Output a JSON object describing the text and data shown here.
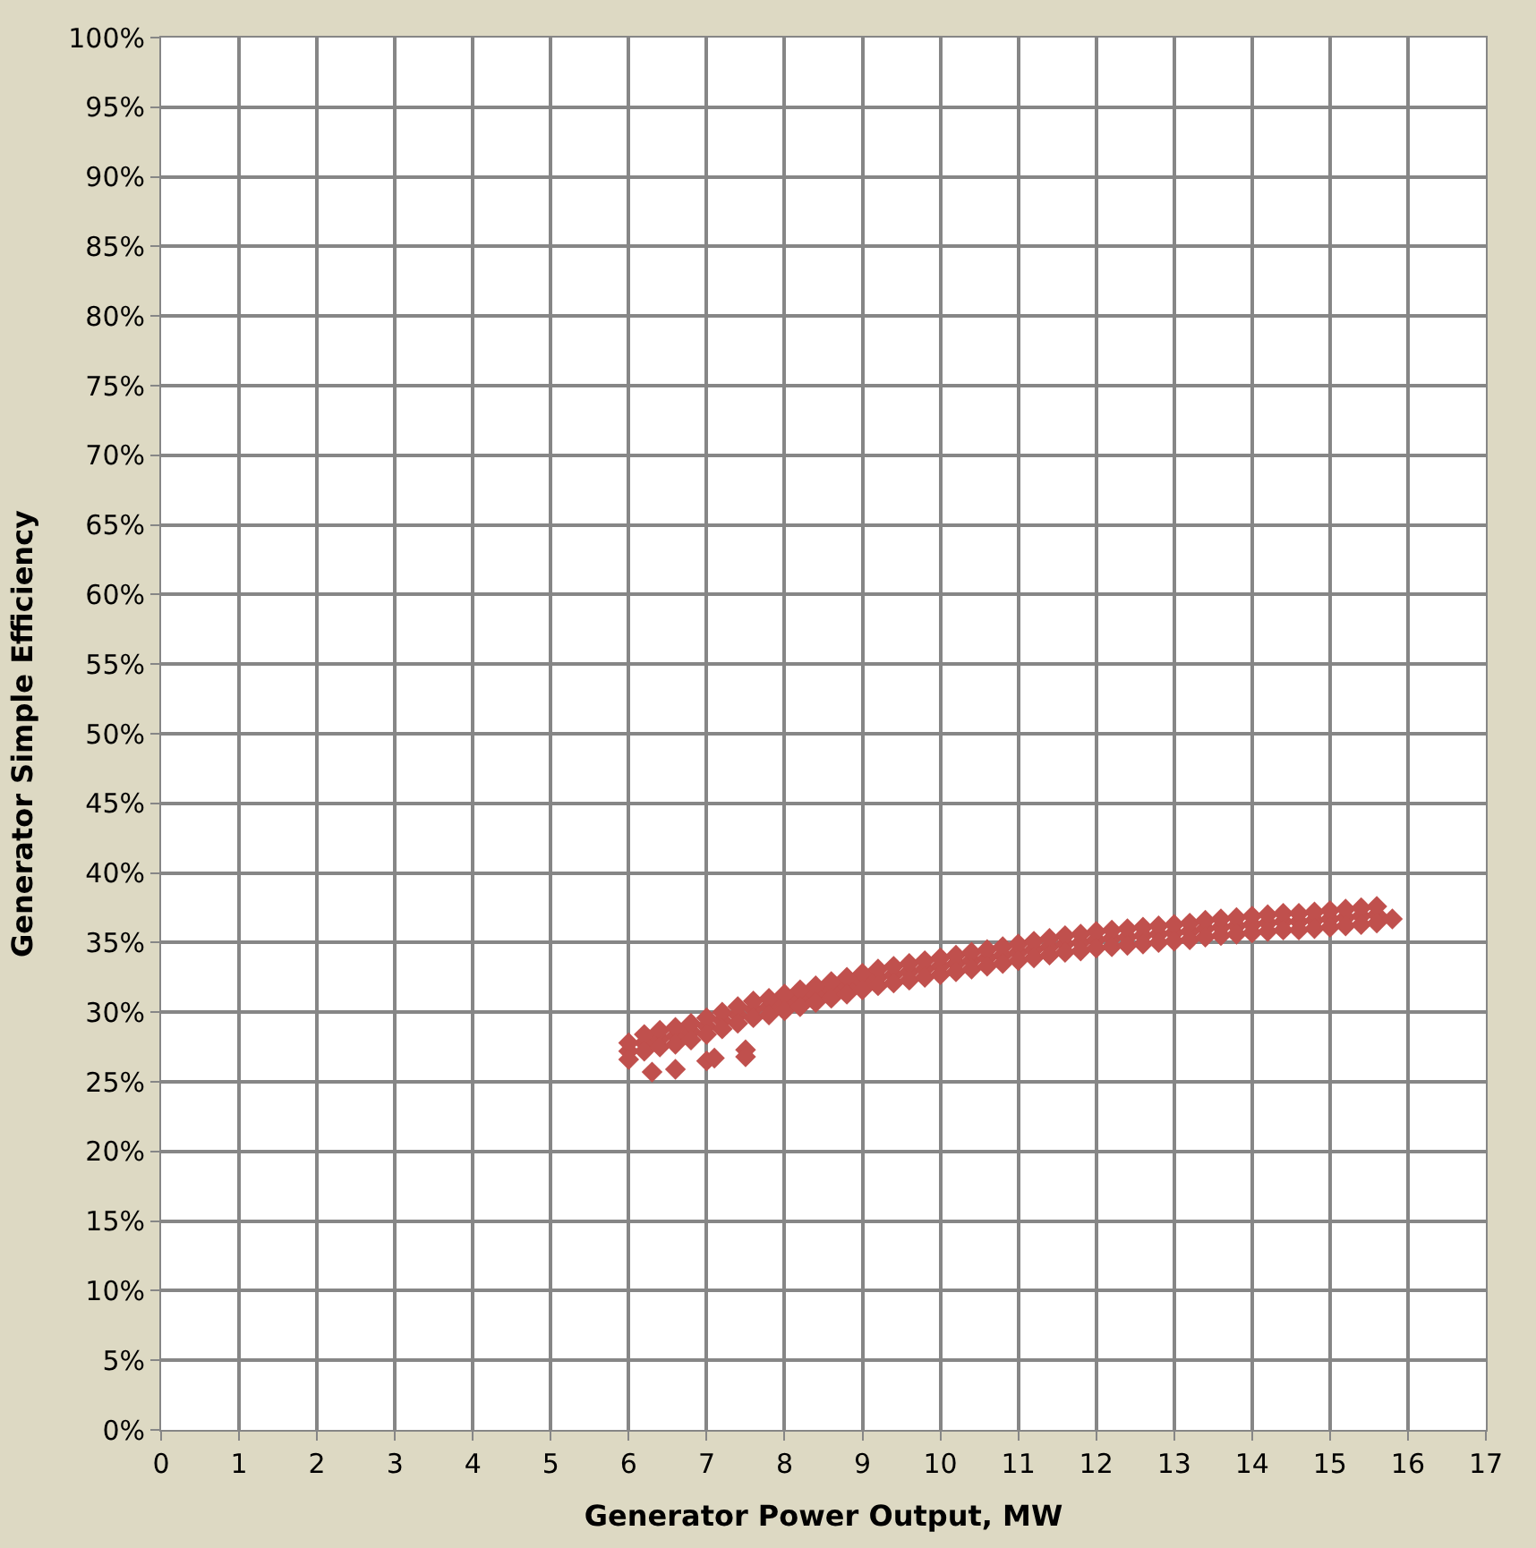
{
  "chart_data": {
    "type": "scatter",
    "xlabel": "Generator Power Output, MW",
    "ylabel": "Generator Simple Efficiency",
    "xlim": [
      0,
      17
    ],
    "xticks": [
      0,
      1,
      2,
      3,
      4,
      5,
      6,
      7,
      8,
      9,
      10,
      11,
      12,
      13,
      14,
      15,
      16,
      17
    ],
    "ylim": [
      0,
      100
    ],
    "yticks": [
      {
        "value": 0,
        "label": "0%"
      },
      {
        "value": 5,
        "label": "5%"
      },
      {
        "value": 10,
        "label": "10%"
      },
      {
        "value": 15,
        "label": "15%"
      },
      {
        "value": 20,
        "label": "20%"
      },
      {
        "value": 25,
        "label": "25%"
      },
      {
        "value": 30,
        "label": "30%"
      },
      {
        "value": 35,
        "label": "35%"
      },
      {
        "value": 40,
        "label": "40%"
      },
      {
        "value": 45,
        "label": "45%"
      },
      {
        "value": 50,
        "label": "50%"
      },
      {
        "value": 55,
        "label": "55%"
      },
      {
        "value": 60,
        "label": "60%"
      },
      {
        "value": 65,
        "label": "65%"
      },
      {
        "value": 70,
        "label": "70%"
      },
      {
        "value": 75,
        "label": "75%"
      },
      {
        "value": 80,
        "label": "80%"
      },
      {
        "value": 85,
        "label": "85%"
      },
      {
        "value": 90,
        "label": "90%"
      },
      {
        "value": 95,
        "label": "95%"
      },
      {
        "value": 100,
        "label": "100%"
      }
    ],
    "grid": true,
    "marker": "diamond",
    "series": [
      {
        "color": "#c0504d",
        "x": [
          6.0,
          6.2,
          6.4,
          6.6,
          6.8,
          7.0,
          7.2,
          7.4,
          7.6,
          7.8,
          8.0,
          8.2,
          8.4,
          8.6,
          8.8,
          9.0,
          9.2,
          9.4,
          9.6,
          9.8,
          10.0,
          10.2,
          10.4,
          10.6,
          10.8,
          11.0,
          11.2,
          11.4,
          11.6,
          11.8,
          12.0,
          12.2,
          12.4,
          12.6,
          12.8,
          13.0,
          13.2,
          13.4,
          13.6,
          13.8,
          14.0,
          14.2,
          14.4,
          14.6,
          14.8,
          15.0,
          15.2,
          15.4,
          15.6,
          6.0,
          6.2,
          6.4,
          6.6,
          6.8,
          7.0,
          7.2,
          7.4,
          7.6,
          7.8,
          8.0,
          8.2,
          8.4,
          8.6,
          8.8,
          9.0,
          9.2,
          9.4,
          9.6,
          9.8,
          10.0,
          10.2,
          10.4,
          10.6,
          10.8,
          11.0,
          11.2,
          11.4,
          11.6,
          11.8,
          12.0,
          12.2,
          12.4,
          12.6,
          12.8,
          13.0,
          13.2,
          13.4,
          13.6,
          13.8,
          14.0,
          14.2,
          14.4,
          14.6,
          14.8,
          15.0,
          15.2,
          15.4,
          15.6,
          6.0,
          6.2,
          6.4,
          6.6,
          6.8,
          7.0,
          7.2,
          7.4,
          7.6,
          7.8,
          8.0,
          8.2,
          8.4,
          8.6,
          8.8,
          9.0,
          9.2,
          9.4,
          9.6,
          9.8,
          10.0,
          10.2,
          10.4,
          10.6,
          10.8,
          11.0,
          11.2,
          11.4,
          11.6,
          11.8,
          12.0,
          12.2,
          12.4,
          12.6,
          12.8,
          13.0,
          13.2,
          13.4,
          13.6,
          13.8,
          14.0,
          14.2,
          14.4,
          14.6,
          14.8,
          15.0,
          15.2,
          15.4,
          15.6,
          6.3,
          6.6,
          7.0,
          7.1,
          7.5,
          7.5,
          15.8
        ],
        "values": [
          27.2,
          27.8,
          28.1,
          28.3,
          28.6,
          29.0,
          29.4,
          29.8,
          30.2,
          30.4,
          30.7,
          31.0,
          31.3,
          31.6,
          31.9,
          32.2,
          32.5,
          32.7,
          32.9,
          33.1,
          33.3,
          33.5,
          33.7,
          33.9,
          34.1,
          34.3,
          34.5,
          34.7,
          34.9,
          35.0,
          35.2,
          35.3,
          35.4,
          35.5,
          35.6,
          35.7,
          35.8,
          36.0,
          36.1,
          36.2,
          36.3,
          36.4,
          36.5,
          36.5,
          36.6,
          36.7,
          36.8,
          36.9,
          37.0,
          27.8,
          28.4,
          28.7,
          28.9,
          29.2,
          29.6,
          30.0,
          30.4,
          30.8,
          31.0,
          31.3,
          31.6,
          31.9,
          32.2,
          32.5,
          32.8,
          33.1,
          33.3,
          33.5,
          33.7,
          33.9,
          34.1,
          34.3,
          34.5,
          34.7,
          34.9,
          35.1,
          35.3,
          35.5,
          35.6,
          35.8,
          35.9,
          36.0,
          36.1,
          36.2,
          36.3,
          36.4,
          36.6,
          36.7,
          36.8,
          36.9,
          37.0,
          37.1,
          37.1,
          37.2,
          37.3,
          37.4,
          37.5,
          37.6,
          26.6,
          27.2,
          27.5,
          27.7,
          28.0,
          28.4,
          28.8,
          29.2,
          29.6,
          29.8,
          30.1,
          30.4,
          30.7,
          31.0,
          31.3,
          31.6,
          31.9,
          32.1,
          32.3,
          32.5,
          32.7,
          32.9,
          33.1,
          33.3,
          33.5,
          33.7,
          33.9,
          34.1,
          34.3,
          34.4,
          34.6,
          34.7,
          34.8,
          34.9,
          35.0,
          35.1,
          35.2,
          35.4,
          35.5,
          35.6,
          35.7,
          35.8,
          35.9,
          35.9,
          36.0,
          36.1,
          36.2,
          36.3,
          36.4,
          25.7,
          25.9,
          26.5,
          26.7,
          27.3,
          26.8,
          36.7
        ]
      }
    ]
  }
}
